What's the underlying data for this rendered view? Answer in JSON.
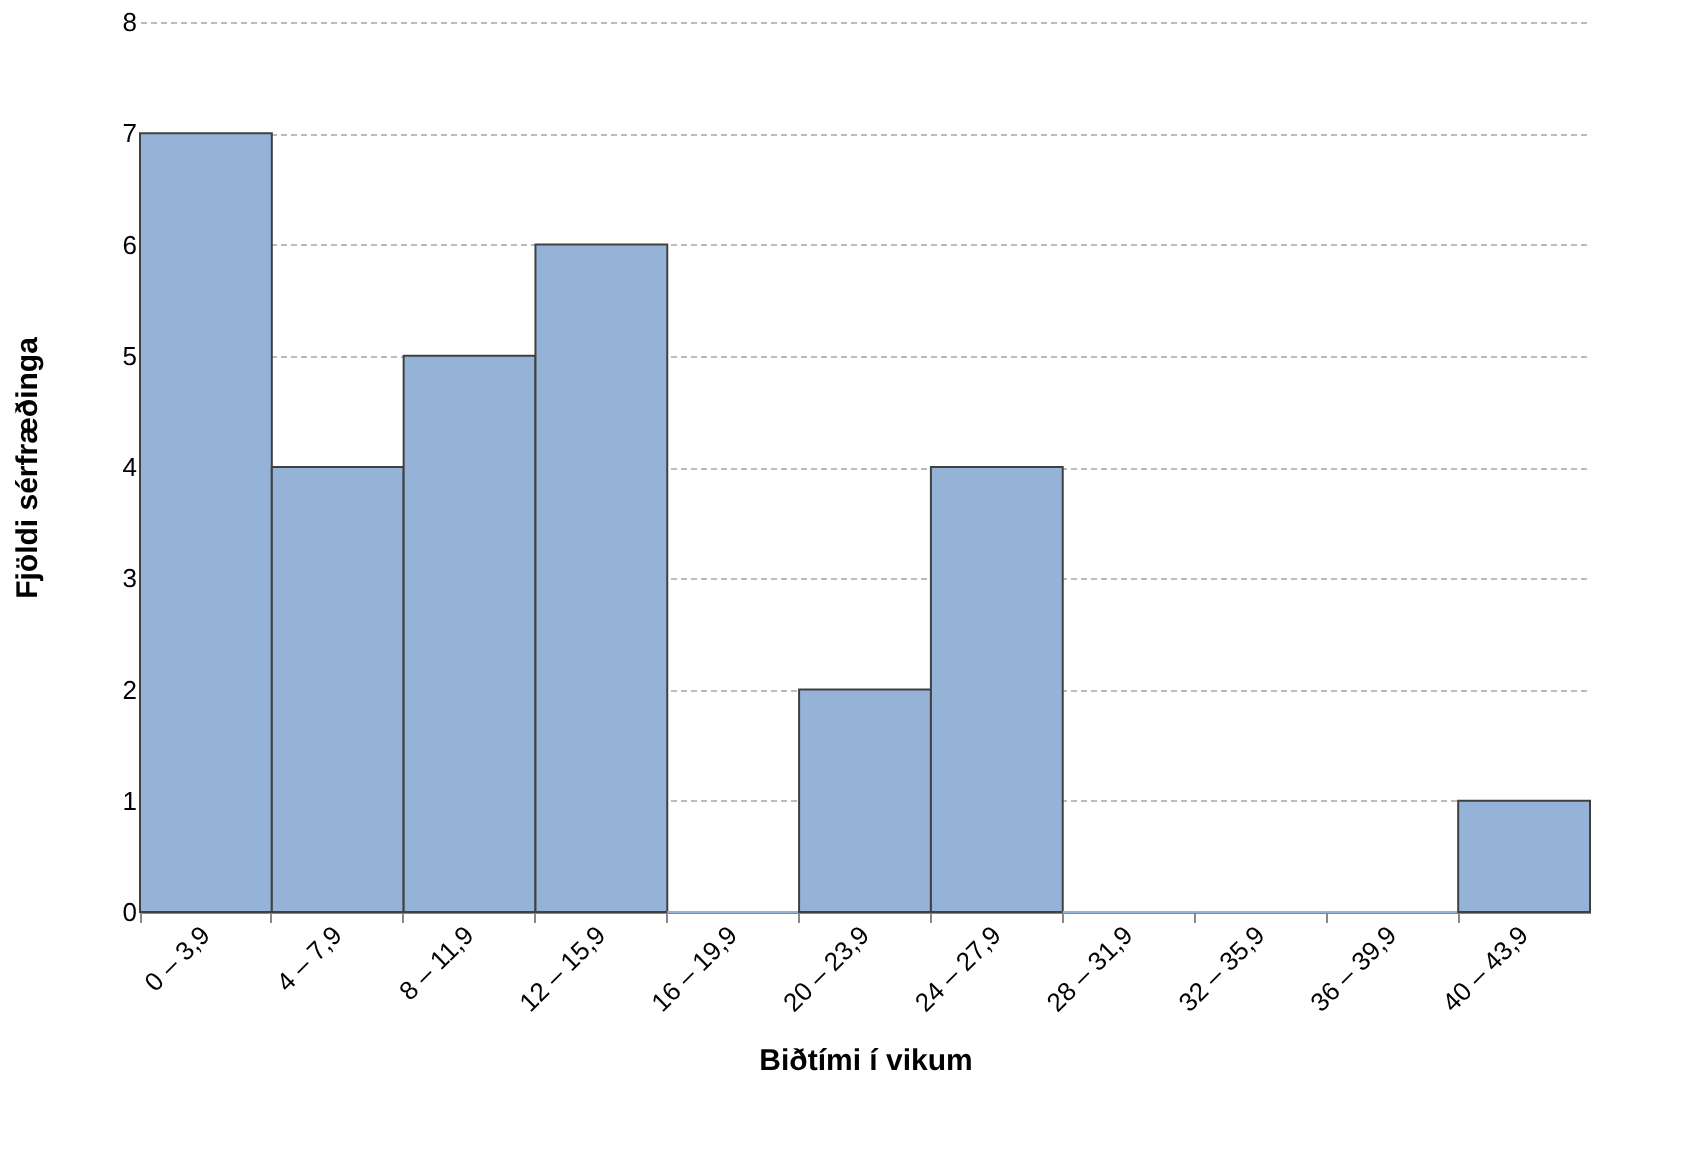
{
  "chart_data": {
    "type": "bar",
    "xlabel": "Biðtími í vikum",
    "ylabel": "Fjöldi sérfræðinga",
    "categories": [
      "0 – 3,9",
      "4 – 7,9",
      "8 – 11,9",
      "12 – 15,9",
      "16 – 19,9",
      "20 – 23,9",
      "24 – 27,9",
      "28 – 31,9",
      "32 – 35,9",
      "36 – 39,9",
      "40 – 43,9"
    ],
    "values": [
      7,
      4,
      5,
      6,
      0,
      2,
      4,
      0,
      0,
      0,
      1
    ],
    "color": "#95b3d7",
    "ylim": [
      0,
      8
    ],
    "yticks": [
      0,
      1,
      2,
      3,
      4,
      5,
      6,
      7,
      8
    ],
    "grid": "y"
  }
}
